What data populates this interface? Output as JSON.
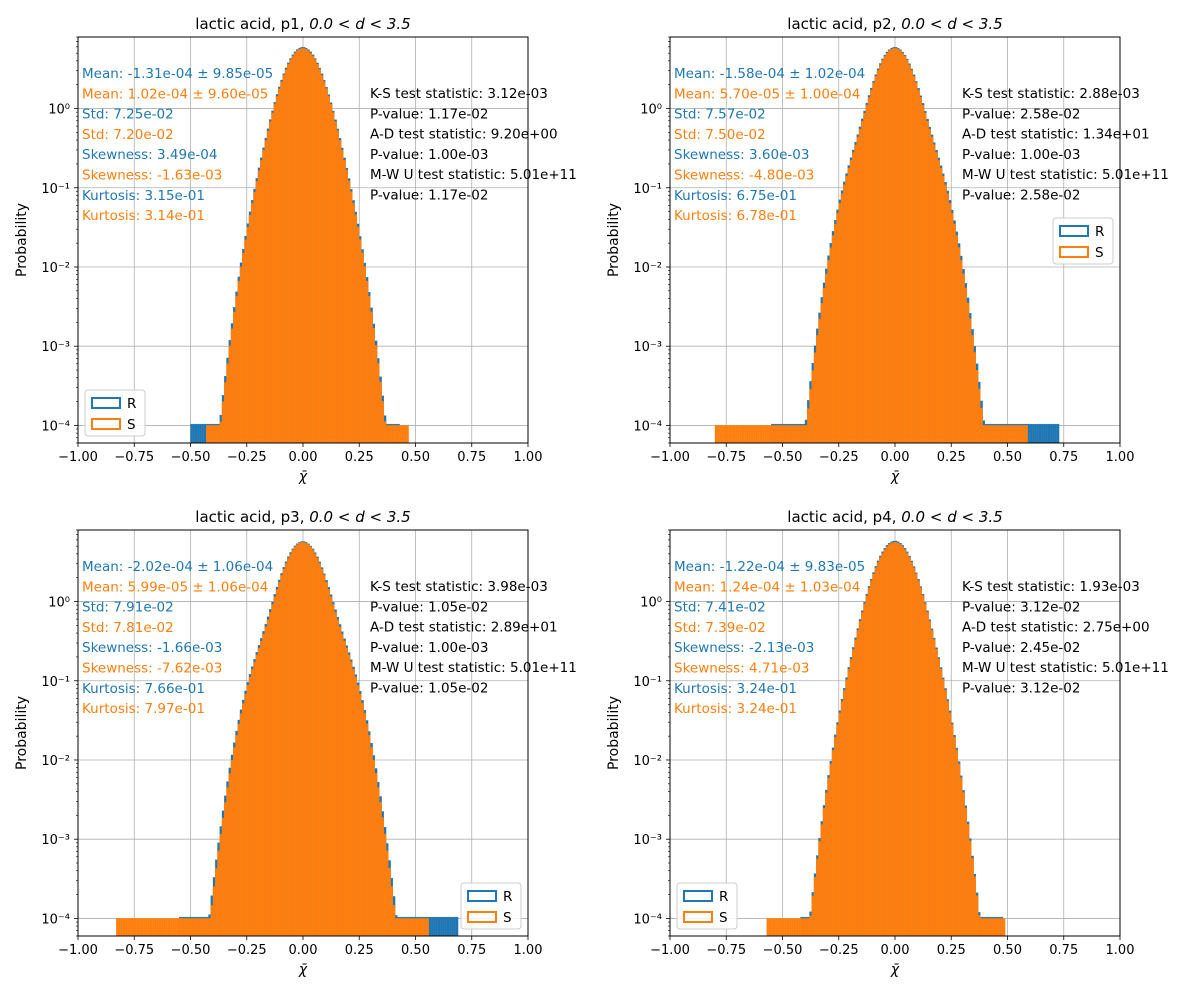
{
  "figure": {
    "colors": {
      "R": "#1f77b4",
      "S": "#ff7f0e",
      "grid": "#b0b0b0"
    }
  },
  "chart_data": [
    {
      "type": "bar",
      "title": "lactic acid, p1, ",
      "title_math": "0.0 < d < 3.5",
      "xlabel": "χ̄",
      "ylabel": "Probability",
      "xlim": [
        -1.0,
        1.0
      ],
      "ylim": [
        6e-05,
        8
      ],
      "yscale": "log",
      "grid": true,
      "xticks": [
        "−1.00",
        "−0.75",
        "−0.50",
        "−0.25",
        "0.00",
        "0.25",
        "0.50",
        "0.75",
        "1.00"
      ],
      "yticks": [
        "10⁻⁴",
        "10⁻³",
        "10⁻²",
        "10⁻¹",
        "10⁰"
      ],
      "legend": {
        "position": "bottom-left",
        "entries": [
          "R",
          "S"
        ]
      },
      "series": [
        {
          "name": "R",
          "mean": -0.000131,
          "std": 0.0725,
          "kurtosis": 0.315,
          "range": [
            -0.5,
            0.42
          ]
        },
        {
          "name": "S",
          "mean": 0.000102,
          "std": 0.072,
          "kurtosis": 0.314,
          "range": [
            -0.43,
            0.46
          ]
        }
      ],
      "stats_left": [
        {
          "text": "Mean: -1.31e-04 ± 9.85e-05",
          "series": "R"
        },
        {
          "text": "Mean: 1.02e-04 ± 9.60e-05",
          "series": "S"
        },
        {
          "text": "Std: 7.25e-02",
          "series": "R"
        },
        {
          "text": "Std: 7.20e-02",
          "series": "S"
        },
        {
          "text": "Skewness: 3.49e-04",
          "series": "R"
        },
        {
          "text": "Skewness: -1.63e-03",
          "series": "S"
        },
        {
          "text": "Kurtosis: 3.15e-01",
          "series": "R"
        },
        {
          "text": "Kurtosis: 3.14e-01",
          "series": "S"
        }
      ],
      "stats_right": [
        "K-S test statistic: 3.12e-03",
        "P-value: 1.17e-02",
        "A-D test statistic: 9.20e+00",
        "P-value: 1.00e-03",
        "M-W U test statistic: 5.01e+11",
        "P-value: 1.17e-02"
      ]
    },
    {
      "type": "bar",
      "title": "lactic acid, p2, ",
      "title_math": "0.0 < d < 3.5",
      "xlabel": "χ̄",
      "ylabel": "Probability",
      "xlim": [
        -1.0,
        1.0
      ],
      "ylim": [
        6e-05,
        8
      ],
      "yscale": "log",
      "grid": true,
      "xticks": [
        "−1.00",
        "−0.75",
        "−0.50",
        "−0.25",
        "0.00",
        "0.25",
        "0.50",
        "0.75",
        "1.00"
      ],
      "yticks": [
        "10⁻⁴",
        "10⁻³",
        "10⁻²",
        "10⁻¹",
        "10⁰"
      ],
      "legend": {
        "position": "center-right",
        "entries": [
          "R",
          "S"
        ]
      },
      "series": [
        {
          "name": "R",
          "mean": -0.000158,
          "std": 0.0757,
          "kurtosis": 0.675,
          "range": [
            -0.55,
            0.72
          ]
        },
        {
          "name": "S",
          "mean": 5.7e-05,
          "std": 0.075,
          "kurtosis": 0.678,
          "range": [
            -0.8,
            0.58
          ]
        }
      ],
      "stats_left": [
        {
          "text": "Mean: -1.58e-04 ± 1.02e-04",
          "series": "R"
        },
        {
          "text": "Mean: 5.70e-05 ± 1.00e-04",
          "series": "S"
        },
        {
          "text": "Std: 7.57e-02",
          "series": "R"
        },
        {
          "text": "Std: 7.50e-02",
          "series": "S"
        },
        {
          "text": "Skewness: 3.60e-03",
          "series": "R"
        },
        {
          "text": "Skewness: -4.80e-03",
          "series": "S"
        },
        {
          "text": "Kurtosis: 6.75e-01",
          "series": "R"
        },
        {
          "text": "Kurtosis: 6.78e-01",
          "series": "S"
        }
      ],
      "stats_right": [
        "K-S test statistic: 2.88e-03",
        "P-value: 2.58e-02",
        "A-D test statistic: 1.34e+01",
        "P-value: 1.00e-03",
        "M-W U test statistic: 5.01e+11",
        "P-value: 2.58e-02"
      ]
    },
    {
      "type": "bar",
      "title": "lactic acid, p3, ",
      "title_math": "0.0 < d < 3.5",
      "xlabel": "χ̄",
      "ylabel": "Probability",
      "xlim": [
        -1.0,
        1.0
      ],
      "ylim": [
        6e-05,
        8
      ],
      "yscale": "log",
      "grid": true,
      "xticks": [
        "−1.00",
        "−0.75",
        "−0.50",
        "−0.25",
        "0.00",
        "0.25",
        "0.50",
        "0.75",
        "1.00"
      ],
      "yticks": [
        "10⁻⁴",
        "10⁻³",
        "10⁻²",
        "10⁻¹",
        "10⁰"
      ],
      "legend": {
        "position": "bottom-right",
        "entries": [
          "R",
          "S"
        ]
      },
      "series": [
        {
          "name": "R",
          "mean": -0.000202,
          "std": 0.0791,
          "kurtosis": 0.766,
          "range": [
            -0.55,
            0.68
          ]
        },
        {
          "name": "S",
          "mean": 5.99e-05,
          "std": 0.0781,
          "kurtosis": 0.797,
          "range": [
            -0.83,
            0.55
          ]
        }
      ],
      "stats_left": [
        {
          "text": "Mean: -2.02e-04 ± 1.06e-04",
          "series": "R"
        },
        {
          "text": "Mean: 5.99e-05 ± 1.06e-04",
          "series": "S"
        },
        {
          "text": "Std: 7.91e-02",
          "series": "R"
        },
        {
          "text": "Std: 7.81e-02",
          "series": "S"
        },
        {
          "text": "Skewness: -1.66e-03",
          "series": "R"
        },
        {
          "text": "Skewness: -7.62e-03",
          "series": "S"
        },
        {
          "text": "Kurtosis: 7.66e-01",
          "series": "R"
        },
        {
          "text": "Kurtosis: 7.97e-01",
          "series": "S"
        }
      ],
      "stats_right": [
        "K-S test statistic: 3.98e-03",
        "P-value: 1.05e-02",
        "A-D test statistic: 2.89e+01",
        "P-value: 1.00e-03",
        "M-W U test statistic: 5.01e+11",
        "P-value: 1.05e-02"
      ]
    },
    {
      "type": "bar",
      "title": "lactic acid, p4, ",
      "title_math": "0.0 < d < 3.5",
      "xlabel": "χ̄",
      "ylabel": "Probability",
      "xlim": [
        -1.0,
        1.0
      ],
      "ylim": [
        6e-05,
        8
      ],
      "yscale": "log",
      "grid": true,
      "xticks": [
        "−1.00",
        "−0.75",
        "−0.50",
        "−0.25",
        "0.00",
        "0.25",
        "0.50",
        "0.75",
        "1.00"
      ],
      "yticks": [
        "10⁻⁴",
        "10⁻³",
        "10⁻²",
        "10⁻¹",
        "10⁰"
      ],
      "legend": {
        "position": "bottom-left",
        "entries": [
          "R",
          "S"
        ]
      },
      "series": [
        {
          "name": "R",
          "mean": -0.000122,
          "std": 0.0741,
          "kurtosis": 0.324,
          "range": [
            -0.42,
            0.47
          ]
        },
        {
          "name": "S",
          "mean": 0.000124,
          "std": 0.0739,
          "kurtosis": 0.324,
          "range": [
            -0.57,
            0.48
          ]
        }
      ],
      "stats_left": [
        {
          "text": "Mean: -1.22e-04 ± 9.83e-05",
          "series": "R"
        },
        {
          "text": "Mean: 1.24e-04 ± 1.03e-04",
          "series": "S"
        },
        {
          "text": "Std: 7.41e-02",
          "series": "R"
        },
        {
          "text": "Std: 7.39e-02",
          "series": "S"
        },
        {
          "text": "Skewness: -2.13e-03",
          "series": "R"
        },
        {
          "text": "Skewness: 4.71e-03",
          "series": "S"
        },
        {
          "text": "Kurtosis: 3.24e-01",
          "series": "R"
        },
        {
          "text": "Kurtosis: 3.24e-01",
          "series": "S"
        }
      ],
      "stats_right": [
        "K-S test statistic: 1.93e-03",
        "P-value: 3.12e-02",
        "A-D test statistic: 2.75e+00",
        "P-value: 2.45e-02",
        "M-W U test statistic: 5.01e+11",
        "P-value: 3.12e-02"
      ]
    }
  ]
}
